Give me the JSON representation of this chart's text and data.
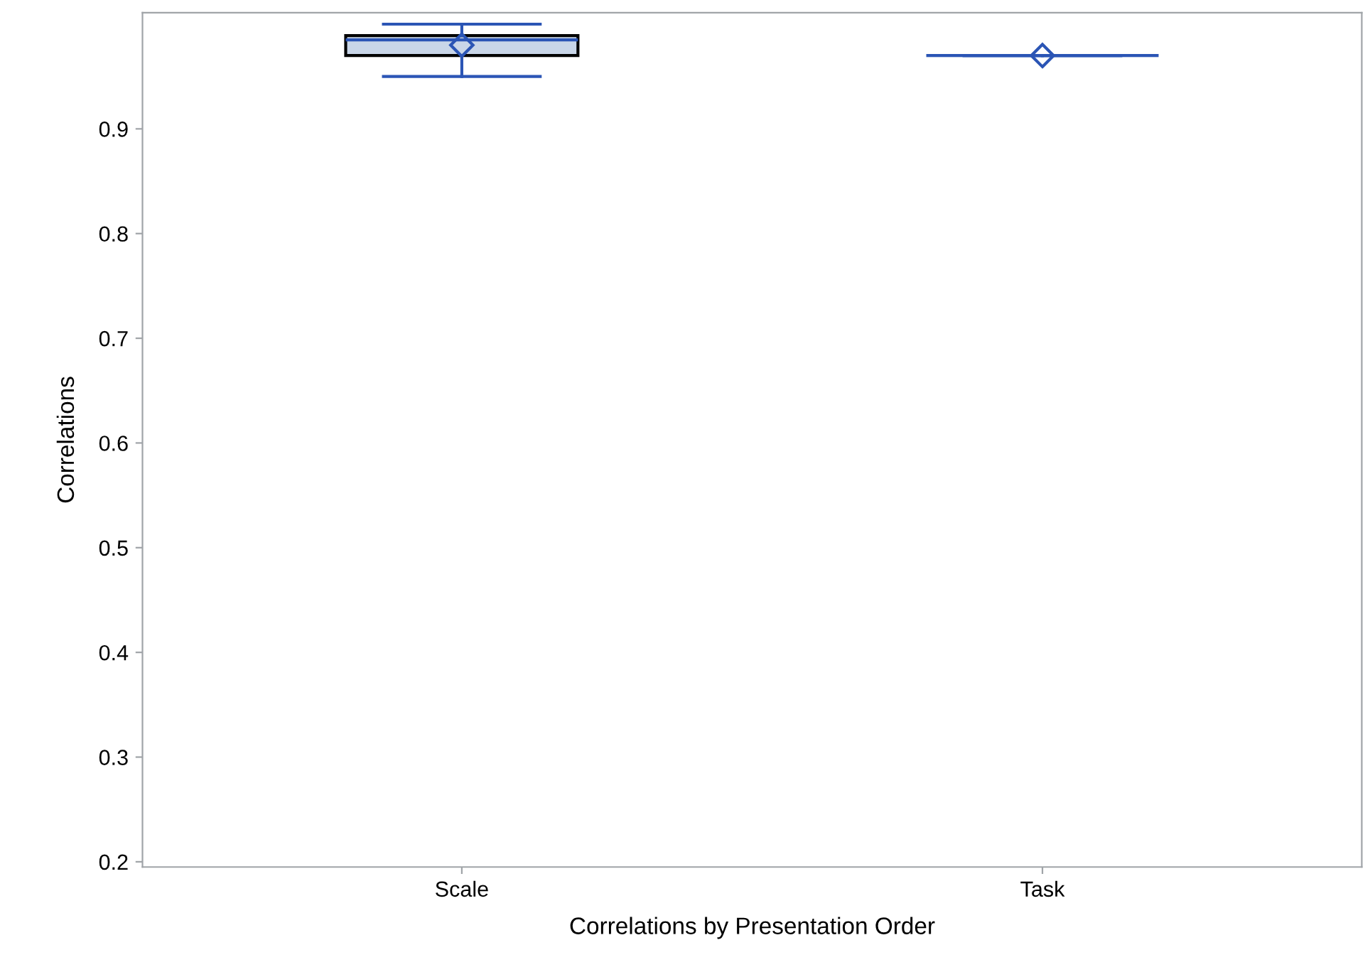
{
  "chart_data": {
    "type": "box",
    "xlabel": "Correlations by Presentation Order",
    "ylabel": "Correlations",
    "categories": [
      "Scale",
      "Task"
    ],
    "boxes": [
      {
        "low": 0.95,
        "q1": 0.97,
        "median": 0.985,
        "q3": 0.989,
        "high": 1.0,
        "mean": 0.98
      },
      {
        "low": 0.97,
        "q1": 0.97,
        "median": 0.97,
        "q3": 0.97,
        "high": 0.97,
        "mean": 0.97
      }
    ],
    "color": "#c9d6e8",
    "ylim": [
      0.195,
      1.011
    ],
    "yticks": [
      0.2,
      0.3,
      0.4,
      0.5,
      0.6,
      0.7,
      0.8,
      0.9
    ],
    "grid": false,
    "marker": "diamond"
  }
}
